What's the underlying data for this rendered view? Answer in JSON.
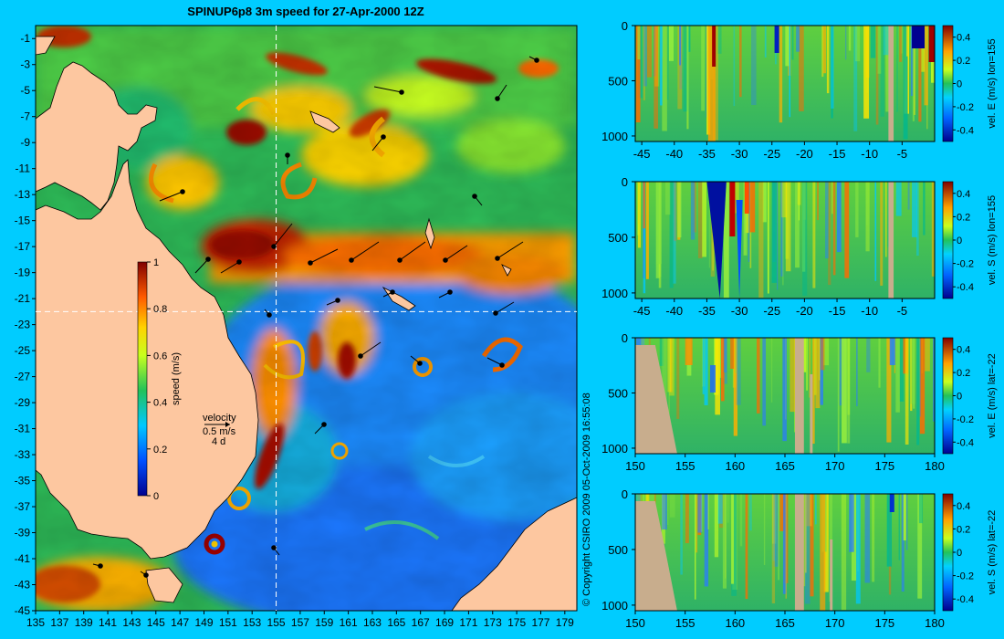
{
  "title": "SPINUP6p8 3m speed for 27-Apr-2000 12Z",
  "copyright": "© Copyright CSIRO 2009  05-Oct-2009 16:55:08",
  "colors": {
    "background": "#00ccff",
    "land": "#fdc7a0",
    "section_land": "#c8ad8d",
    "crosshair": "#ffffff"
  },
  "map": {
    "x_ticks": [
      "135",
      "137",
      "139",
      "141",
      "143",
      "145",
      "147",
      "149",
      "151",
      "153",
      "155",
      "157",
      "159",
      "161",
      "163",
      "165",
      "167",
      "169",
      "171",
      "173",
      "175",
      "177",
      "179"
    ],
    "y_ticks": [
      "-1",
      "-3",
      "-5",
      "-7",
      "-9",
      "-11",
      "-13",
      "-15",
      "-17",
      "-19",
      "-21",
      "-23",
      "-25",
      "-27",
      "-29",
      "-31",
      "-33",
      "-35",
      "-37",
      "-39",
      "-41",
      "-43",
      "-45"
    ],
    "lon_range": [
      135,
      180
    ],
    "lat_range": [
      -45,
      0
    ],
    "crosshair": {
      "lon": 155,
      "lat": -22
    },
    "colorbar": {
      "label": "speed (m/s)",
      "ticks": [
        "1",
        "0.8",
        "0.6",
        "0.4",
        "0.2",
        "0"
      ],
      "range": [
        0,
        1
      ]
    },
    "velocity_legend": {
      "title": "velocity",
      "scale": "0.5 m/s",
      "note": "4 d"
    }
  },
  "sections": [
    {
      "id": "lon155-east",
      "label": "vel. E (m/s) lon=155",
      "x_ticks": [
        "-45",
        "-40",
        "-35",
        "-30",
        "-25",
        "-20",
        "-15",
        "-10",
        "-5"
      ],
      "y_ticks": [
        "0",
        "500",
        "1000"
      ],
      "cbar_ticks": [
        "0.4",
        "0.2",
        "0",
        "-0.2",
        "-0.4"
      ],
      "x_range": [
        -46,
        0
      ],
      "depth_range": [
        0,
        1050
      ],
      "land_cols": [
        [
          -7.1,
          -6.3
        ]
      ]
    },
    {
      "id": "lon155-south",
      "label": "vel. S (m/s) lon=155",
      "x_ticks": [
        "-45",
        "-40",
        "-35",
        "-30",
        "-25",
        "-20",
        "-15",
        "-10",
        "-5"
      ],
      "y_ticks": [
        "0",
        "500",
        "1000"
      ],
      "cbar_ticks": [
        "0.4",
        "0.2",
        "0",
        "-0.2",
        "-0.4"
      ],
      "x_range": [
        -46,
        0
      ],
      "depth_range": [
        0,
        1050
      ],
      "land_cols": [
        [
          -7.1,
          -6.3
        ]
      ]
    },
    {
      "id": "lat-22-east",
      "label": "vel. E (m/s) lat=-22",
      "x_ticks": [
        "150",
        "155",
        "160",
        "165",
        "170",
        "175",
        "180"
      ],
      "y_ticks": [
        "0",
        "500",
        "1000"
      ],
      "cbar_ticks": [
        "0.4",
        "0.2",
        "0",
        "-0.2",
        "-0.4"
      ],
      "x_range": [
        150,
        180
      ],
      "depth_range": [
        0,
        1050
      ],
      "land_cols": [
        [
          166.0,
          166.9
        ]
      ]
    },
    {
      "id": "lat-22-south",
      "label": "vel. S (m/s) lat=-22",
      "x_ticks": [
        "150",
        "155",
        "160",
        "165",
        "170",
        "175",
        "180"
      ],
      "y_ticks": [
        "0",
        "500",
        "1000"
      ],
      "cbar_ticks": [
        "0.4",
        "0.2",
        "0",
        "-0.2",
        "-0.4"
      ],
      "x_range": [
        150,
        180
      ],
      "depth_range": [
        0,
        1050
      ],
      "land_cols": [
        [
          166.0,
          166.9
        ]
      ]
    }
  ]
}
